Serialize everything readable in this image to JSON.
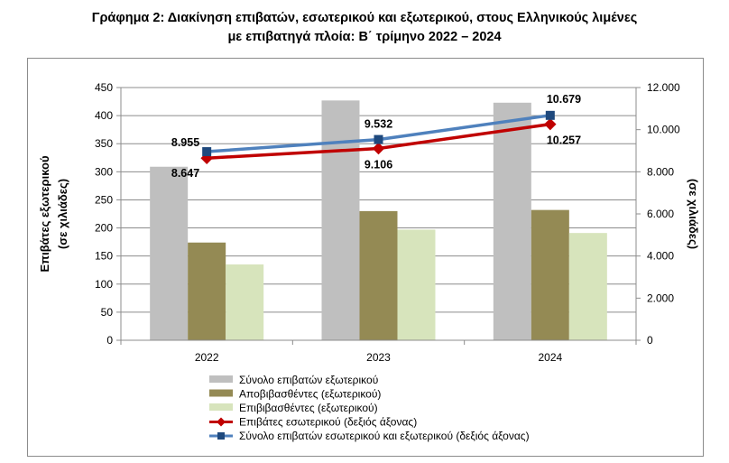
{
  "page": {
    "title_line1": "Γράφημα 2: Διακίνηση επιβατών, εσωτερικού και εξωτερικού, στους Ελληνικούς λιμένες",
    "title_line2": "με επιβατηγά πλοία: Β΄ τρίμηνο 2022 – 2024"
  },
  "chart_data": {
    "type": "bar",
    "title": "Γράφημα 2: Διακίνηση επιβατών, εσωτερικού και εξωτερικού, στους Ελληνικούς λιμένες με επιβατηγά πλοία: Β΄ τρίμηνο 2022 – 2024",
    "categories": [
      "2022",
      "2023",
      "2024"
    ],
    "ylabel_left_line1": "Επιβάτες εξωτερικού",
    "ylabel_left_line2": "(σε χιλιάδες)",
    "ylabel_right": "(σε χιλιάδες)",
    "ylim_left": [
      0,
      450
    ],
    "yticks_left": [
      "0",
      "50",
      "100",
      "150",
      "200",
      "250",
      "300",
      "350",
      "400",
      "450"
    ],
    "ylim_right": [
      0,
      12000
    ],
    "yticks_right": [
      "0",
      "2.000",
      "4.000",
      "6.000",
      "8.000",
      "10.000",
      "12.000"
    ],
    "grid": true,
    "legend_position": "bottom",
    "bar_series": [
      {
        "name": "Σύνολο  επιβατών  εξωτερικού",
        "color": "#bfbfbf",
        "values": [
          309,
          427,
          423
        ]
      },
      {
        "name": "Αποβιβασθέντες  (εξωτερικού)",
        "color": "#948a54",
        "values": [
          174,
          230,
          232
        ]
      },
      {
        "name": "Επιβιβασθέντες  (εξωτερικού)",
        "color": "#d7e4bc",
        "values": [
          135,
          197,
          191
        ]
      }
    ],
    "line_series": [
      {
        "name": "Επιβάτες  εσωτερικού  (δεξιός  άξονας)",
        "color": "#c00000",
        "marker": "diamond",
        "values": [
          8647,
          9106,
          10257
        ],
        "labels": [
          "8.647",
          "9.106",
          "10.257"
        ]
      },
      {
        "name": "Σύνολο  επιβατών  εσωτερικού  και  εξωτερικού  (δεξιός  άξονας)",
        "color": "#4f81bd",
        "marker": "square",
        "values": [
          8955,
          9532,
          10679
        ],
        "labels": [
          "8.955",
          "9.532",
          "10.679"
        ]
      }
    ]
  }
}
